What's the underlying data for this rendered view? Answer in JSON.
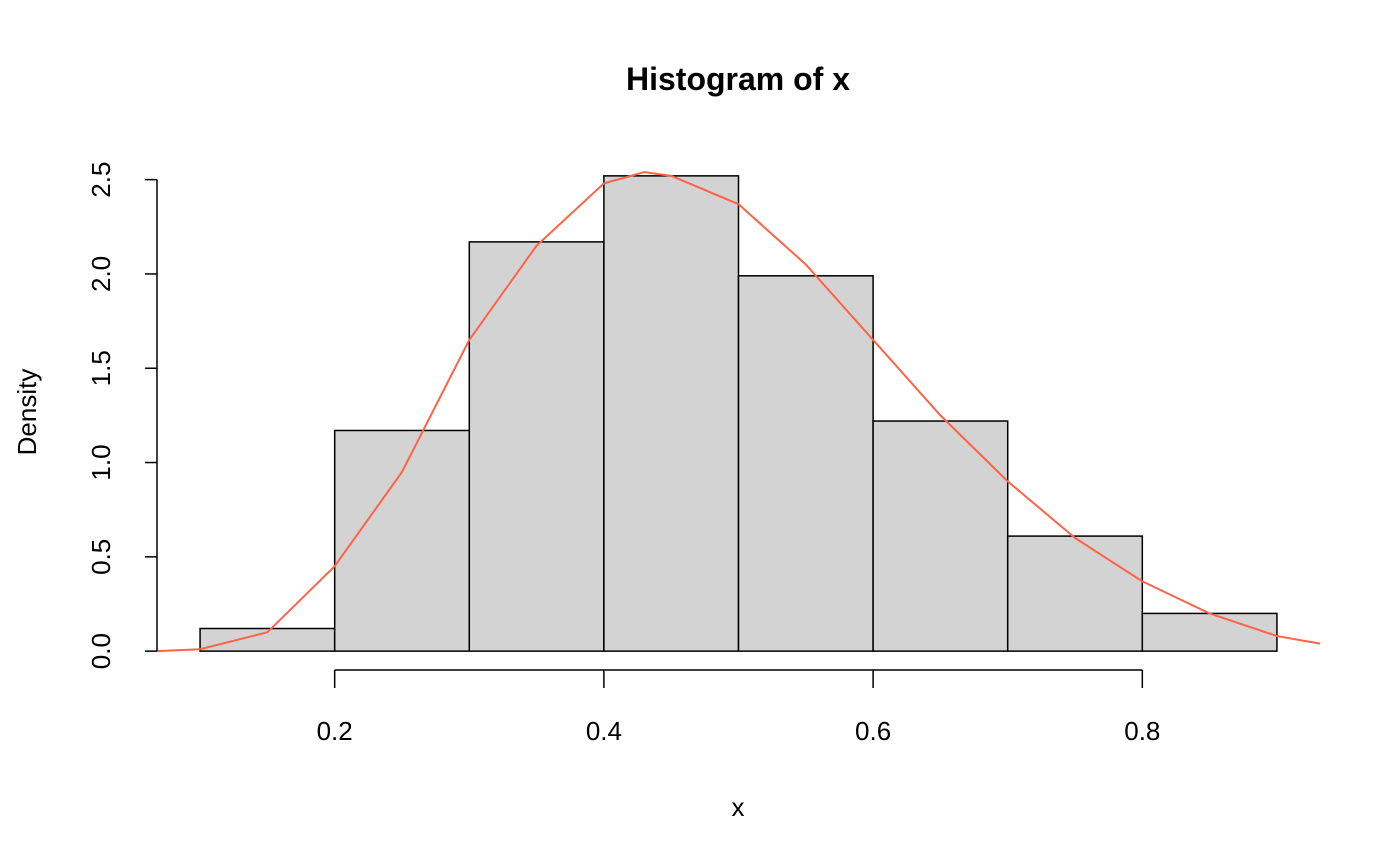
{
  "chart_data": {
    "type": "histogram",
    "title": "Histogram of x",
    "x_label": "x",
    "y_label": "Density",
    "bins": [
      0.1,
      0.2,
      0.3,
      0.4,
      0.5,
      0.6,
      0.7,
      0.8,
      0.9
    ],
    "values": [
      0.12,
      1.17,
      2.17,
      2.52,
      1.99,
      1.22,
      0.61,
      0.2
    ],
    "color": "#d3d3d3",
    "xlim": [
      0.068,
      0.932
    ],
    "ylim": [
      -0.1,
      2.62
    ],
    "xticks": [
      0.2,
      0.4,
      0.6,
      0.8
    ],
    "yticks": [
      {
        "value": 0,
        "label": "0.0"
      },
      0.5,
      {
        "value": 1,
        "label": "1.0"
      },
      1.5,
      {
        "value": 2,
        "label": "2.0"
      },
      2.5
    ],
    "overlay": {
      "type": "line",
      "color": "#ff6347",
      "x": [
        0.068,
        0.1,
        0.15,
        0.2,
        0.25,
        0.3,
        0.35,
        0.4,
        0.43,
        0.45,
        0.5,
        0.55,
        0.6,
        0.65,
        0.7,
        0.75,
        0.8,
        0.85,
        0.9,
        0.932
      ],
      "values": [
        0,
        0.01,
        0.1,
        0.45,
        0.95,
        1.65,
        2.15,
        2.48,
        2.54,
        2.52,
        2.37,
        2.05,
        1.65,
        1.25,
        0.9,
        0.6,
        0.37,
        0.2,
        0.08,
        0.04
      ]
    }
  }
}
